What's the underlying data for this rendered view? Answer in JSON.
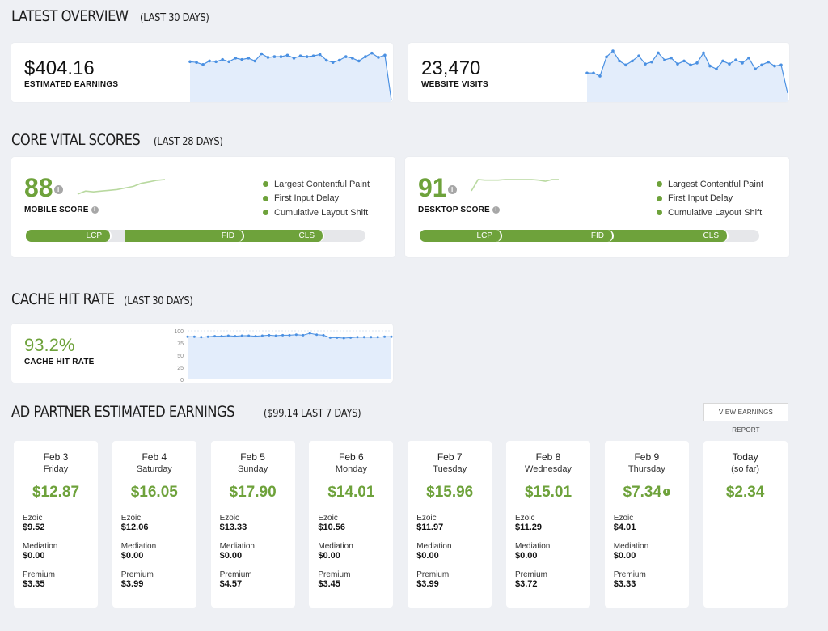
{
  "overview": {
    "title": "LATEST OVERVIEW",
    "period": "(LAST 30 DAYS)",
    "earnings": {
      "value": "$404.16",
      "label": "ESTIMATED EARNINGS",
      "series": [
        55,
        54,
        51,
        56,
        55,
        58,
        55,
        60,
        58,
        60,
        56,
        66,
        61,
        62,
        62,
        64,
        60,
        63,
        62,
        63,
        65,
        57,
        54,
        57,
        62,
        60,
        56,
        62,
        67,
        61,
        64,
        1
      ]
    },
    "visits": {
      "value": "23,470",
      "label": "WEBSITE VISITS",
      "series": [
        48,
        48,
        45,
        64,
        70,
        60,
        56,
        60,
        65,
        57,
        59,
        68,
        61,
        63,
        57,
        60,
        56,
        58,
        68,
        55,
        52,
        60,
        57,
        61,
        58,
        63,
        52,
        56,
        59,
        55,
        56,
        28
      ]
    }
  },
  "core": {
    "title": "CORE VITAL SCORES",
    "period": "(LAST 28 DAYS)",
    "mobile": {
      "score": "88",
      "label": "MOBILE SCORE",
      "info": "i",
      "trend": [
        76,
        80,
        79,
        80,
        81,
        82,
        84,
        86,
        90,
        92,
        94,
        95
      ],
      "metrics": [
        "Largest Contentful Paint",
        "First Input Delay",
        "Cumulative Layout Shift"
      ],
      "segments": [
        "LCP",
        "FID",
        "CLS"
      ]
    },
    "desktop": {
      "score": "91",
      "label": "DESKTOP SCORE",
      "info": "i",
      "trend": [
        60,
        100,
        98,
        98,
        98,
        100,
        100,
        100,
        100,
        100,
        98,
        94,
        100,
        100
      ],
      "metrics": [
        "Largest Contentful Paint",
        "First Input Delay",
        "Cumulative Layout Shift"
      ],
      "segments": [
        "LCP",
        "FID",
        "CLS"
      ]
    }
  },
  "cache": {
    "title": "CACHE HIT RATE",
    "period": "(LAST 30 DAYS)",
    "value": "93.2%",
    "label": "CACHE HIT RATE",
    "chart_data": {
      "type": "area",
      "yticks": [
        "100",
        "75",
        "50",
        "25",
        "0"
      ],
      "ylim": [
        0,
        100
      ],
      "values": [
        88,
        88,
        87,
        88,
        89,
        89,
        90,
        89,
        90,
        90,
        89,
        90,
        91,
        90,
        91,
        91,
        92,
        91,
        95,
        92,
        91,
        86,
        86,
        85,
        86,
        87,
        87,
        87,
        87,
        88,
        88
      ]
    }
  },
  "partners": {
    "title": "AD PARTNER ESTIMATED EARNINGS",
    "period": "($99.14 LAST 7 DAYS)",
    "button": "VIEW EARNINGS REPORT",
    "labels": {
      "ezoic": "Ezoic",
      "mediation": "Mediation",
      "premium": "Premium"
    },
    "days": [
      {
        "date": "Feb 3",
        "weekday": "Friday",
        "total": "$12.87",
        "ezoic": "$9.52",
        "mediation": "$0.00",
        "premium": "$3.35"
      },
      {
        "date": "Feb 4",
        "weekday": "Saturday",
        "total": "$16.05",
        "ezoic": "$12.06",
        "mediation": "$0.00",
        "premium": "$3.99"
      },
      {
        "date": "Feb 5",
        "weekday": "Sunday",
        "total": "$17.90",
        "ezoic": "$13.33",
        "mediation": "$0.00",
        "premium": "$4.57"
      },
      {
        "date": "Feb 6",
        "weekday": "Monday",
        "total": "$14.01",
        "ezoic": "$10.56",
        "mediation": "$0.00",
        "premium": "$3.45"
      },
      {
        "date": "Feb 7",
        "weekday": "Tuesday",
        "total": "$15.96",
        "ezoic": "$11.97",
        "mediation": "$0.00",
        "premium": "$3.99"
      },
      {
        "date": "Feb 8",
        "weekday": "Wednesday",
        "total": "$15.01",
        "ezoic": "$11.29",
        "mediation": "$0.00",
        "premium": "$3.72"
      },
      {
        "date": "Feb 9",
        "weekday": "Thursday",
        "total": "$7.34",
        "ezoic": "$4.01",
        "mediation": "$0.00",
        "premium": "$3.33",
        "info": "i"
      },
      {
        "date": "Today",
        "weekday": "(so far)",
        "total": "$2.34"
      }
    ]
  },
  "colors": {
    "green": "#6ea23b",
    "blue": "#4a90e2",
    "fill": "#e3edfb"
  }
}
